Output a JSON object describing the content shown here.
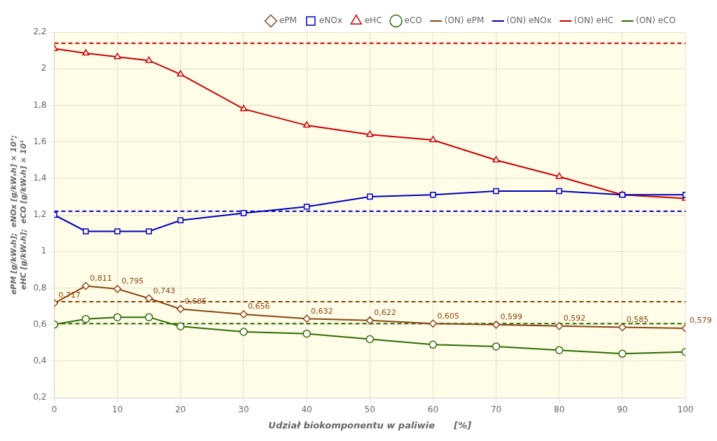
{
  "chart_data": {
    "type": "line",
    "xlabel": "Udział biokomponentu w paliwie      [%]",
    "ylabel": [
      "ePM [g/kWₓh];  eNOx [g/kWₓh] × 10¹;",
      "eHC [g/kWₓh];  eCO [g/kWₓh] × 10¹"
    ],
    "x": [
      0,
      5,
      10,
      15,
      20,
      30,
      40,
      50,
      60,
      70,
      80,
      90,
      100
    ],
    "series": [
      {
        "name": "(ON) ePM",
        "type": "hline",
        "value": 0.725,
        "color": "#8B4513",
        "line_style": "dashed"
      },
      {
        "name": "ePM",
        "color": "#8B4513",
        "marker": "diamond",
        "line_style": "solid",
        "values": [
          0.717,
          0.811,
          0.795,
          0.743,
          0.685,
          0.656,
          0.632,
          0.622,
          0.605,
          0.599,
          0.592,
          0.585,
          0.579
        ],
        "value_labels": [
          "0,717",
          "0,811",
          "0,795",
          "0,743",
          "0,685",
          "0,656",
          "0,632",
          "0,622",
          "0,605",
          "0,599",
          "0,592",
          "0,585",
          "0,579"
        ]
      },
      {
        "name": "(ON) eNOx",
        "type": "hline",
        "value": 1.22,
        "color": "#0000BB",
        "line_style": "dashed"
      },
      {
        "name": "eNOx",
        "color": "#0000BB",
        "marker": "square",
        "line_style": "solid",
        "values": [
          1.2,
          1.11,
          1.11,
          1.11,
          1.17,
          1.21,
          1.245,
          1.3,
          1.31,
          1.33,
          1.33,
          1.31,
          1.31
        ]
      },
      {
        "name": "(ON) eHC",
        "type": "hline",
        "value": 2.14,
        "color": "#CC0000",
        "line_style": "dashed"
      },
      {
        "name": "eHC",
        "color": "#CC0000",
        "marker": "triangle",
        "line_style": "solid",
        "values": [
          2.11,
          2.085,
          2.065,
          2.045,
          1.97,
          1.78,
          1.69,
          1.64,
          1.61,
          1.5,
          1.41,
          1.31,
          1.29
        ]
      },
      {
        "name": "(ON) eCO",
        "type": "hline",
        "value": 0.605,
        "color": "#2E6B00",
        "line_style": "dashed"
      },
      {
        "name": "eCO",
        "color": "#2E6B00",
        "marker": "circle",
        "line_style": "solid",
        "values": [
          0.6,
          0.63,
          0.64,
          0.64,
          0.59,
          0.56,
          0.55,
          0.52,
          0.49,
          0.48,
          0.46,
          0.44,
          0.45
        ]
      }
    ],
    "xlim": [
      0,
      100
    ],
    "xticks": [
      0,
      10,
      20,
      30,
      40,
      50,
      60,
      70,
      80,
      90,
      100
    ],
    "ylim": [
      0.2,
      2.2
    ],
    "yticks": [
      {
        "value": 0.2,
        "label": "0,2"
      },
      {
        "value": 0.4,
        "label": "0,4"
      },
      {
        "value": 0.6,
        "label": "0,6"
      },
      {
        "value": 0.8,
        "label": "0,8"
      },
      1,
      {
        "value": 1.2,
        "label": "1,2"
      },
      {
        "value": 1.4,
        "label": "1,4"
      },
      {
        "value": 1.6,
        "label": "1,6"
      },
      {
        "value": 1.8,
        "label": "1,8"
      },
      2,
      {
        "value": 2.2,
        "label": "2,2"
      }
    ],
    "grid": true,
    "legend": "upper right"
  }
}
